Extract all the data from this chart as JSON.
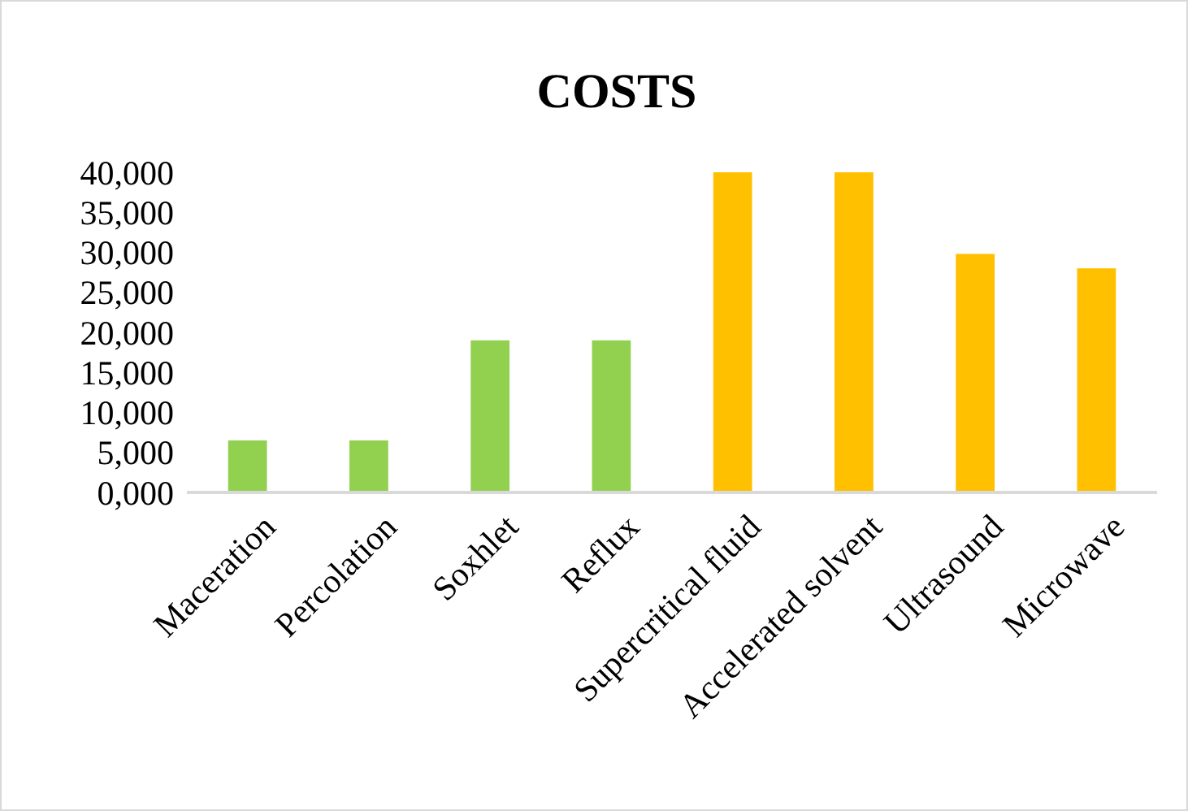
{
  "chart_data": {
    "type": "bar",
    "title": "COSTS",
    "categories": [
      "Maceration",
      "Percolation",
      "Soxhlet",
      "Reflux",
      "Supercritical fluid",
      "Accelerated solvent",
      "Ultrasound",
      "Microwave"
    ],
    "values": [
      6500,
      6500,
      19000,
      19000,
      40000,
      40000,
      29800,
      28000
    ],
    "colors": [
      "#92d050",
      "#92d050",
      "#92d050",
      "#92d050",
      "#ffc000",
      "#ffc000",
      "#ffc000",
      "#ffc000"
    ],
    "ylim": [
      0,
      40000
    ],
    "yticks": [
      {
        "value": 0,
        "label": "0,000"
      },
      {
        "value": 5000,
        "label": "5,000"
      },
      {
        "value": 10000,
        "label": "10,000"
      },
      {
        "value": 15000,
        "label": "15,000"
      },
      {
        "value": 20000,
        "label": "20,000"
      },
      {
        "value": 25000,
        "label": "25,000"
      },
      {
        "value": 30000,
        "label": "30,000"
      },
      {
        "value": 35000,
        "label": "35,000"
      },
      {
        "value": 40000,
        "label": "40,000"
      }
    ],
    "grid": false
  }
}
